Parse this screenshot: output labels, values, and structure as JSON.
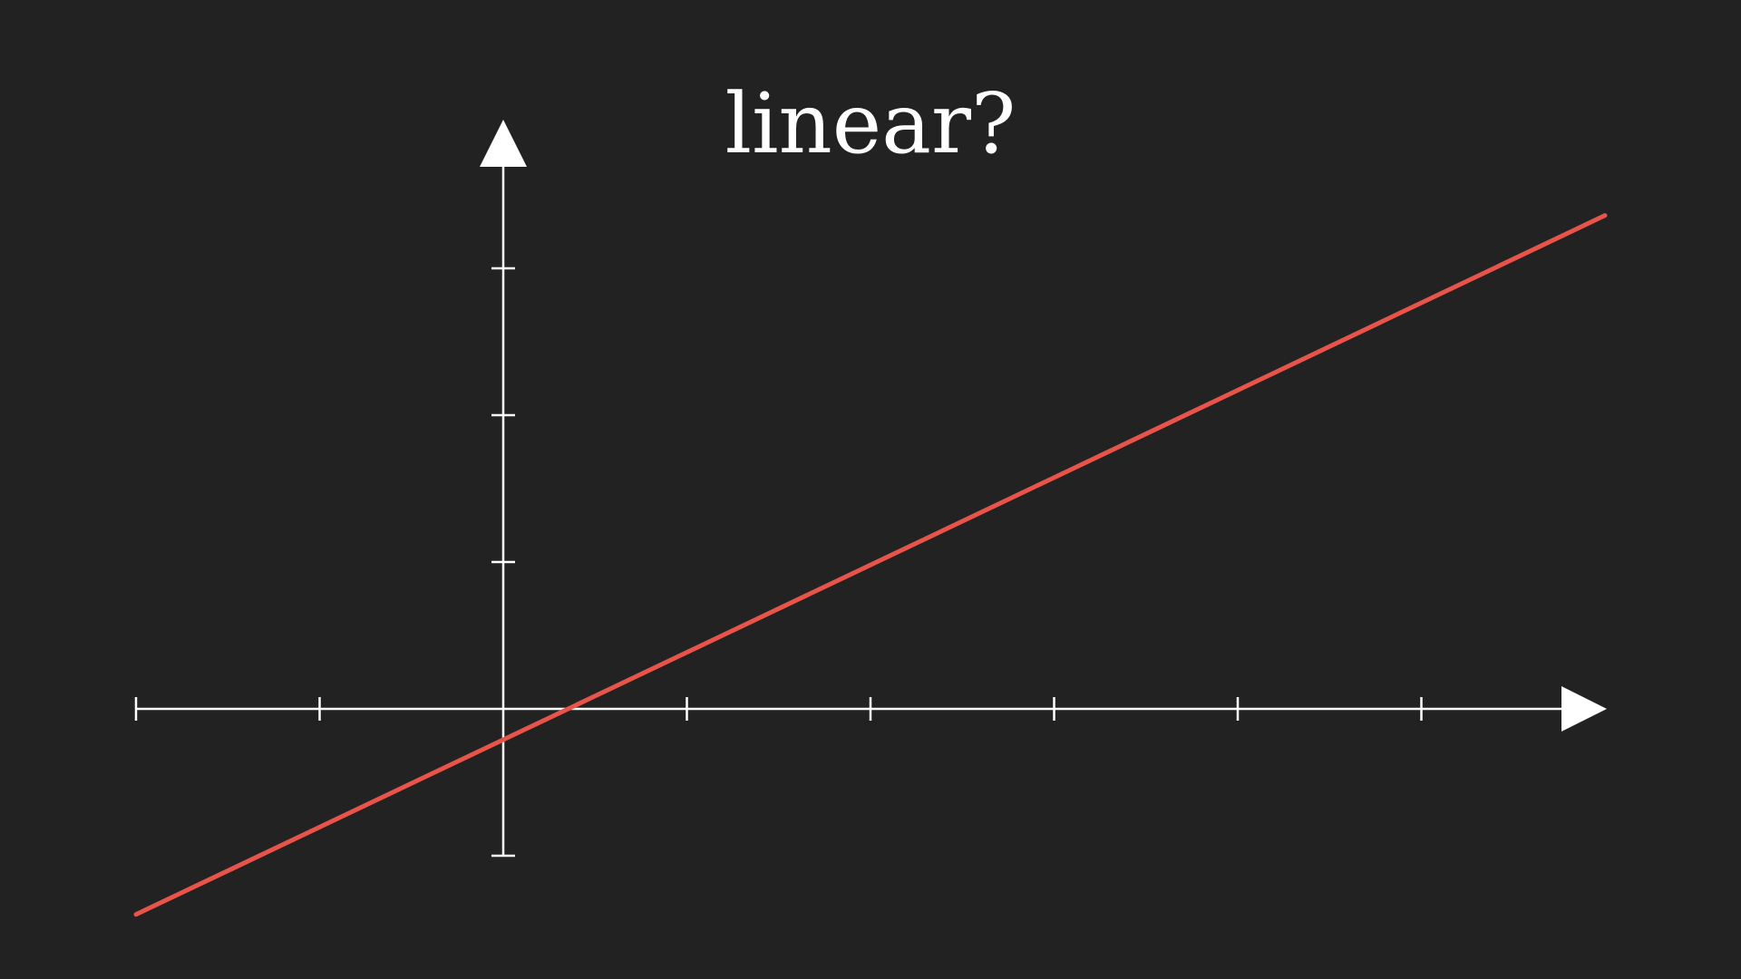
{
  "chart_data": {
    "type": "line",
    "title": "linear?",
    "xlabel": "",
    "ylabel": "",
    "xlim": [
      -2,
      6
    ],
    "ylim": [
      -1,
      3
    ],
    "x_ticks": [
      -2,
      -1,
      1,
      2,
      3,
      4,
      5
    ],
    "y_ticks": [
      -1,
      1,
      2,
      3
    ],
    "tick_labels_shown": false,
    "grid": false,
    "arrows": true,
    "series": [
      {
        "color": "#e8534a",
        "x": [
          -2,
          6
        ],
        "y": [
          -1.4,
          3.36
        ]
      }
    ]
  },
  "colors": {
    "background": "#222222",
    "axes": "#ffffff",
    "series": "#e8534a"
  }
}
